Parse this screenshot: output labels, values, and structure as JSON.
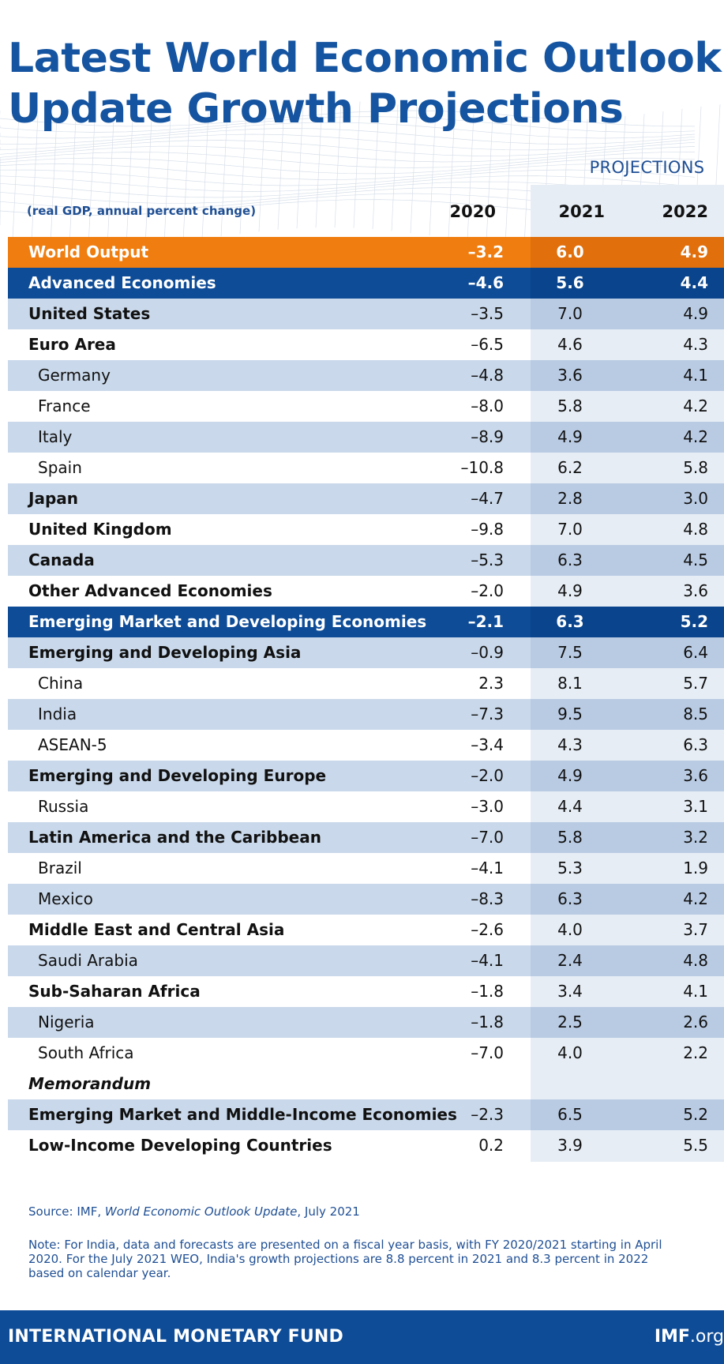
{
  "title_line1": "Latest World Economic Outlook",
  "title_line2": "Update Growth Projections",
  "projections_label": "PROJECTIONS",
  "subhead": "(real GDP, annual percent change)",
  "years": [
    "2020",
    "2021",
    "2022"
  ],
  "colors": {
    "title_blue": "#1554a0",
    "orange": "#ef7d0f",
    "navy": "#0e4c97",
    "shade": "#c9d8ea",
    "projection_bg": "#e6edf5"
  },
  "chart_data": {
    "type": "table",
    "title": "Latest World Economic Outlook Update Growth Projections",
    "subtitle": "(real GDP, annual percent change)",
    "columns": [
      "2020",
      "2021",
      "2022"
    ],
    "projection_columns": [
      "2021",
      "2022"
    ],
    "rows": [
      {
        "name": "World Output",
        "style": "orange",
        "values": [
          "–3.2",
          "6.0",
          "4.9"
        ]
      },
      {
        "name": "Advanced Economies",
        "style": "navy",
        "values": [
          "–4.6",
          "5.6",
          "4.4"
        ]
      },
      {
        "name": "United States",
        "style": "shade-bold",
        "values": [
          "–3.5",
          "7.0",
          "4.9"
        ]
      },
      {
        "name": "Euro Area",
        "style": "plain-bold",
        "values": [
          "–6.5",
          "4.6",
          "4.3"
        ]
      },
      {
        "name": "Germany",
        "style": "shade-indent",
        "values": [
          "–4.8",
          "3.6",
          "4.1"
        ]
      },
      {
        "name": "France",
        "style": "plain-indent",
        "values": [
          "–8.0",
          "5.8",
          "4.2"
        ]
      },
      {
        "name": "Italy",
        "style": "shade-indent",
        "values": [
          "–8.9",
          "4.9",
          "4.2"
        ]
      },
      {
        "name": "Spain",
        "style": "plain-indent",
        "values": [
          "–10.8",
          "6.2",
          "5.8"
        ]
      },
      {
        "name": "Japan",
        "style": "shade-bold",
        "values": [
          "–4.7",
          "2.8",
          "3.0"
        ]
      },
      {
        "name": "United Kingdom",
        "style": "plain-bold",
        "values": [
          "–9.8",
          "7.0",
          "4.8"
        ]
      },
      {
        "name": "Canada",
        "style": "shade-bold",
        "values": [
          "–5.3",
          "6.3",
          "4.5"
        ]
      },
      {
        "name": "Other Advanced Economies",
        "style": "plain-bold",
        "values": [
          "–2.0",
          "4.9",
          "3.6"
        ]
      },
      {
        "name": "Emerging Market and Developing Economies",
        "style": "navy",
        "values": [
          "–2.1",
          "6.3",
          "5.2"
        ]
      },
      {
        "name": "Emerging and Developing Asia",
        "style": "shade-bold",
        "values": [
          "–0.9",
          "7.5",
          "6.4"
        ]
      },
      {
        "name": "China",
        "style": "plain-indent",
        "values": [
          "2.3",
          "8.1",
          "5.7"
        ]
      },
      {
        "name": "India",
        "style": "shade-indent",
        "values": [
          "–7.3",
          "9.5",
          "8.5"
        ]
      },
      {
        "name": "ASEAN-5",
        "style": "plain-indent",
        "values": [
          "–3.4",
          "4.3",
          "6.3"
        ]
      },
      {
        "name": "Emerging and Developing Europe",
        "style": "shade-bold",
        "values": [
          "–2.0",
          "4.9",
          "3.6"
        ]
      },
      {
        "name": "Russia",
        "style": "plain-indent",
        "values": [
          "–3.0",
          "4.4",
          "3.1"
        ]
      },
      {
        "name": "Latin America and the Caribbean",
        "style": "shade-bold",
        "values": [
          "–7.0",
          "5.8",
          "3.2"
        ]
      },
      {
        "name": "Brazil",
        "style": "plain-indent",
        "values": [
          "–4.1",
          "5.3",
          "1.9"
        ]
      },
      {
        "name": "Mexico",
        "style": "shade-indent",
        "values": [
          "–8.3",
          "6.3",
          "4.2"
        ]
      },
      {
        "name": "Middle East and Central Asia",
        "style": "plain-bold",
        "values": [
          "–2.6",
          "4.0",
          "3.7"
        ]
      },
      {
        "name": "Saudi Arabia",
        "style": "shade-indent",
        "values": [
          "–4.1",
          "2.4",
          "4.8"
        ]
      },
      {
        "name": "Sub-Saharan Africa",
        "style": "plain-bold",
        "values": [
          "–1.8",
          "3.4",
          "4.1"
        ]
      },
      {
        "name": "Nigeria",
        "style": "shade-indent",
        "values": [
          "–1.8",
          "2.5",
          "2.6"
        ]
      },
      {
        "name": "South Africa",
        "style": "plain-indent",
        "values": [
          "–7.0",
          "4.0",
          "2.2"
        ]
      },
      {
        "name": "Memorandum",
        "style": "memo",
        "values": [
          "",
          "",
          ""
        ]
      },
      {
        "name": "Emerging Market and Middle-Income Economies",
        "style": "shade-bold",
        "values": [
          "–2.3",
          "6.5",
          "5.2"
        ]
      },
      {
        "name": "Low-Income Developing Countries",
        "style": "plain-bold",
        "values": [
          "0.2",
          "3.9",
          "5.5"
        ]
      }
    ]
  },
  "source_prefix": "Source: IMF, ",
  "source_title": "World Economic Outlook Update",
  "source_suffix": ", July 2021",
  "note": "Note: For India, data and forecasts are presented on a fiscal year basis, with FY 2020/2021 starting in April 2020. For the July 2021 WEO, India's growth projections are 8.8 percent in 2021 and 8.3 percent in 2022 based on calendar year.",
  "footer_left": "INTERNATIONAL MONETARY FUND",
  "footer_right_bold": "IMF",
  "footer_right_rest": ".org"
}
